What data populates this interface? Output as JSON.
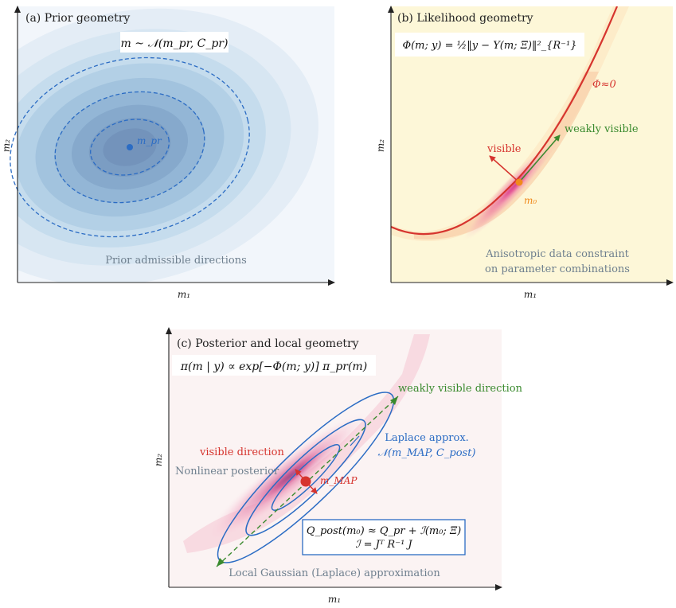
{
  "panel_a": {
    "title": "(a) Prior geometry",
    "formula": "m ~ 𝒩(m_pr, C_pr)",
    "point_label": "m_pr",
    "caption": "Prior admissible directions",
    "xlabel": "m₁",
    "ylabel": "m₂"
  },
  "panel_b": {
    "title": "(b) Likelihood geometry",
    "formula": "Φ(m; y) = ½‖y − Y(m; Ξ)‖²_{R⁻¹}",
    "curve_label": "Φ≈0",
    "visible_label": "visible",
    "weak_label": "weakly visible",
    "point_label": "m₀",
    "caption_line1": "Anisotropic data constraint",
    "caption_line2": "on parameter combinations",
    "xlabel": "m₁",
    "ylabel": "m₂"
  },
  "panel_c": {
    "title": "(c) Posterior and local geometry",
    "formula": "π(m | y) ∝ exp[−Φ(m; y)] π_pr(m)",
    "weak_dir_label": "weakly visible direction",
    "visible_dir_label": "visible direction",
    "laplace_line1": "Laplace approx.",
    "laplace_line2": "𝒩(m_MAP, C_post)",
    "nonlinear_label": "Nonlinear posterior",
    "map_label": "m_MAP",
    "box_line1": "Q_post(m₀) ≈ Q_pr + ℐ(m₀; Ξ)",
    "box_line2": "ℐ = Jᵀ R⁻¹ J",
    "caption": "Local Gaussian (Laplace) approximation",
    "xlabel": "m₁",
    "ylabel": "m₂"
  },
  "colors": {
    "prior_blue": "#2b6cc4",
    "curve_red": "#d6342e",
    "visible_red": "#d6342e",
    "weak_green": "#3a8a2e",
    "point_orange": "#f08a1c",
    "posterior_pink": "#e8559a",
    "likelihood_bg": "#fdf7d8",
    "caption_gray": "#6e7f8e"
  }
}
